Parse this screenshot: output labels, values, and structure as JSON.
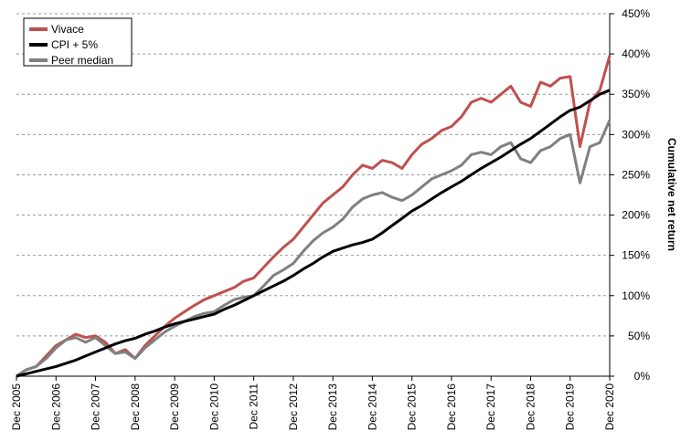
{
  "chart_data": {
    "type": "line",
    "y_axis_label": "Cumulative net return",
    "x": [
      "Dec 2005",
      null,
      null,
      null,
      "Dec 2006",
      null,
      null,
      null,
      "Dec 2007",
      null,
      null,
      null,
      "Dec 2008",
      null,
      null,
      null,
      "Dec 2009",
      null,
      null,
      null,
      "Dec 2010",
      null,
      null,
      null,
      "Dec 2011",
      null,
      null,
      null,
      "Dec 2012",
      null,
      null,
      null,
      "Dec 2013",
      null,
      null,
      null,
      "Dec 2014",
      null,
      null,
      null,
      "Dec 2015",
      null,
      null,
      null,
      "Dec 2016",
      null,
      null,
      null,
      "Dec 2017",
      null,
      null,
      null,
      "Dec 2018",
      null,
      null,
      null,
      "Dec 2019",
      null,
      null,
      null,
      "Dec 2020"
    ],
    "series": [
      {
        "name": "Vivace",
        "color": "#c0504d",
        "values": [
          0,
          8,
          12,
          25,
          38,
          45,
          52,
          48,
          50,
          42,
          28,
          33,
          22,
          38,
          50,
          62,
          72,
          80,
          88,
          95,
          100,
          105,
          110,
          118,
          122,
          135,
          148,
          160,
          170,
          185,
          200,
          215,
          225,
          235,
          250,
          262,
          258,
          268,
          265,
          258,
          275,
          288,
          295,
          305,
          310,
          322,
          340,
          345,
          340,
          350,
          360,
          340,
          335,
          365,
          360,
          370,
          372,
          285,
          340,
          355,
          398
        ]
      },
      {
        "name": "CPI + 5%",
        "color": "#000000",
        "values": [
          0,
          3,
          6,
          9,
          12,
          16,
          20,
          25,
          30,
          35,
          40,
          44,
          47,
          52,
          56,
          61,
          65,
          68,
          71,
          74,
          77,
          83,
          88,
          94,
          100,
          106,
          112,
          118,
          125,
          133,
          140,
          148,
          155,
          159,
          163,
          166,
          170,
          178,
          187,
          196,
          205,
          212,
          220,
          228,
          235,
          242,
          250,
          258,
          265,
          272,
          280,
          288,
          295,
          304,
          313,
          322,
          330,
          334,
          342,
          350,
          355
        ]
      },
      {
        "name": "Peer median",
        "color": "#808080",
        "values": [
          0,
          8,
          12,
          22,
          35,
          45,
          48,
          42,
          48,
          38,
          28,
          30,
          22,
          35,
          45,
          55,
          62,
          68,
          74,
          78,
          80,
          88,
          95,
          98,
          100,
          112,
          125,
          132,
          140,
          155,
          168,
          178,
          185,
          195,
          210,
          220,
          225,
          228,
          222,
          218,
          225,
          235,
          245,
          250,
          255,
          262,
          275,
          278,
          275,
          285,
          290,
          270,
          265,
          280,
          285,
          295,
          300,
          240,
          285,
          290,
          318
        ]
      }
    ],
    "ylim": [
      0,
      450
    ],
    "yticks": [
      {
        "value": 0,
        "label": "0%"
      },
      {
        "value": 50,
        "label": "50%"
      },
      {
        "value": 100,
        "label": "100%"
      },
      {
        "value": 150,
        "label": "150%"
      },
      {
        "value": 200,
        "label": "200%"
      },
      {
        "value": 250,
        "label": "250%"
      },
      {
        "value": 300,
        "label": "300%"
      },
      {
        "value": 350,
        "label": "350%"
      },
      {
        "value": 400,
        "label": "400%"
      },
      {
        "value": 450,
        "label": "450%"
      }
    ],
    "grid": true,
    "legend": "upper left"
  }
}
